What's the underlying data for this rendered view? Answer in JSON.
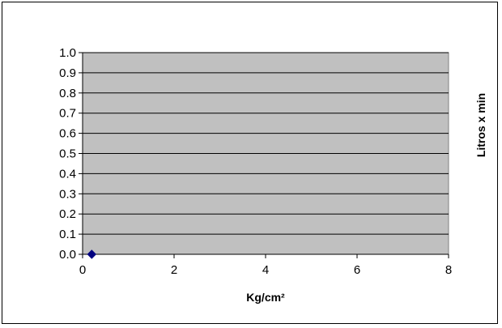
{
  "chart_data": {
    "type": "scatter",
    "title": "",
    "xlabel": "Kg/cm²",
    "ylabel": "Litros x min",
    "xlim": [
      0,
      8
    ],
    "ylim": [
      0,
      1.0
    ],
    "x_ticks": [
      "0",
      "2",
      "4",
      "6",
      "8"
    ],
    "y_ticks": [
      "0.0",
      "0.1",
      "0.2",
      "0.3",
      "0.4",
      "0.5",
      "0.6",
      "0.7",
      "0.8",
      "0.9",
      "1.0"
    ],
    "grid": "horizontal",
    "legend": "none",
    "colors": {
      "plot_background": "#c0c0c0",
      "marker": "#000080",
      "gridline": "#000000"
    },
    "series": [
      {
        "marker": "diamond",
        "points": [
          {
            "x": 0.2,
            "y": 0.0
          }
        ]
      }
    ]
  }
}
